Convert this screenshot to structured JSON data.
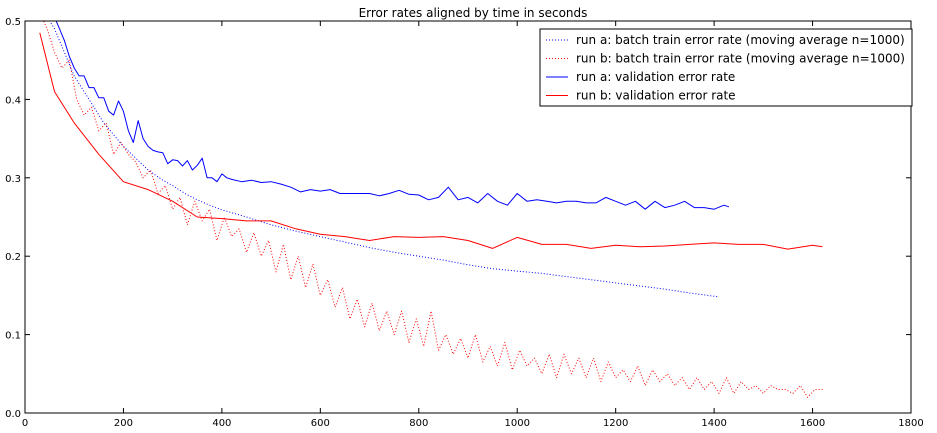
{
  "chart_data": {
    "type": "line",
    "title": "Error rates aligned by time in seconds",
    "xlabel": "",
    "ylabel": "",
    "xlim": [
      0,
      1800
    ],
    "ylim": [
      0,
      0.5
    ],
    "x_ticks": [
      "0",
      "200",
      "400",
      "600",
      "800",
      "1000",
      "1200",
      "1400",
      "1600",
      "1800"
    ],
    "y_ticks": [
      "0.0",
      "0.1",
      "0.2",
      "0.3",
      "0.4",
      "0.5"
    ],
    "grid": false,
    "legend_position": "top-right",
    "series": [
      {
        "name": "run a: batch train error rate (moving average n=1000)",
        "color": "#0000ff",
        "style": "dotted",
        "x": [
          30,
          60,
          80,
          100,
          120,
          140,
          160,
          180,
          200,
          225,
          250,
          280,
          300,
          325,
          350,
          375,
          400,
          450,
          500,
          550,
          600,
          650,
          700,
          750,
          800,
          850,
          900,
          950,
          1000,
          1050,
          1100,
          1150,
          1200,
          1250,
          1300,
          1350,
          1400,
          1410
        ],
        "y": [
          0.52,
          0.49,
          0.46,
          0.43,
          0.41,
          0.39,
          0.37,
          0.355,
          0.34,
          0.325,
          0.31,
          0.297,
          0.29,
          0.28,
          0.272,
          0.265,
          0.259,
          0.25,
          0.24,
          0.232,
          0.225,
          0.218,
          0.211,
          0.205,
          0.2,
          0.195,
          0.189,
          0.184,
          0.181,
          0.178,
          0.174,
          0.17,
          0.166,
          0.162,
          0.158,
          0.153,
          0.149,
          0.148
        ]
      },
      {
        "name": "run b: batch train error rate (moving average n=1000)",
        "color": "#ff0000",
        "style": "dotted",
        "x": [
          30,
          45,
          60,
          75,
          90,
          105,
          120,
          135,
          150,
          165,
          180,
          195,
          210,
          225,
          240,
          255,
          270,
          285,
          300,
          315,
          330,
          345,
          360,
          375,
          390,
          405,
          420,
          435,
          450,
          465,
          480,
          495,
          510,
          525,
          540,
          555,
          570,
          585,
          600,
          615,
          630,
          645,
          660,
          675,
          690,
          705,
          720,
          735,
          750,
          765,
          780,
          795,
          810,
          825,
          840,
          855,
          870,
          885,
          900,
          915,
          930,
          945,
          960,
          975,
          990,
          1005,
          1020,
          1035,
          1050,
          1065,
          1080,
          1095,
          1110,
          1125,
          1140,
          1155,
          1170,
          1185,
          1200,
          1215,
          1230,
          1245,
          1260,
          1275,
          1290,
          1305,
          1320,
          1335,
          1350,
          1365,
          1380,
          1395,
          1410,
          1425,
          1440,
          1455,
          1470,
          1485,
          1500,
          1515,
          1530,
          1545,
          1560,
          1575,
          1590,
          1605,
          1620
        ],
        "y": [
          0.51,
          0.49,
          0.46,
          0.44,
          0.45,
          0.4,
          0.38,
          0.39,
          0.36,
          0.37,
          0.33,
          0.345,
          0.33,
          0.32,
          0.3,
          0.31,
          0.28,
          0.29,
          0.26,
          0.275,
          0.24,
          0.27,
          0.245,
          0.26,
          0.22,
          0.25,
          0.225,
          0.235,
          0.205,
          0.23,
          0.2,
          0.22,
          0.18,
          0.215,
          0.17,
          0.2,
          0.16,
          0.19,
          0.15,
          0.17,
          0.135,
          0.16,
          0.12,
          0.145,
          0.11,
          0.14,
          0.105,
          0.13,
          0.1,
          0.13,
          0.09,
          0.12,
          0.085,
          0.13,
          0.08,
          0.1,
          0.075,
          0.095,
          0.07,
          0.1,
          0.065,
          0.085,
          0.06,
          0.09,
          0.055,
          0.08,
          0.06,
          0.07,
          0.05,
          0.075,
          0.045,
          0.075,
          0.05,
          0.07,
          0.045,
          0.07,
          0.04,
          0.065,
          0.045,
          0.055,
          0.04,
          0.06,
          0.035,
          0.055,
          0.04,
          0.05,
          0.035,
          0.045,
          0.03,
          0.045,
          0.03,
          0.04,
          0.025,
          0.045,
          0.025,
          0.04,
          0.03,
          0.035,
          0.025,
          0.035,
          0.03,
          0.03,
          0.025,
          0.035,
          0.02,
          0.03,
          0.03
        ]
      },
      {
        "name": "run a: validation error rate",
        "color": "#0000ff",
        "style": "solid",
        "x": [
          60,
          70,
          80,
          90,
          100,
          110,
          120,
          130,
          140,
          150,
          160,
          170,
          180,
          190,
          200,
          210,
          220,
          230,
          240,
          250,
          260,
          270,
          280,
          290,
          300,
          310,
          320,
          330,
          340,
          350,
          360,
          370,
          380,
          390,
          400,
          410,
          420,
          440,
          460,
          480,
          500,
          520,
          540,
          560,
          580,
          600,
          620,
          640,
          660,
          680,
          700,
          720,
          740,
          760,
          780,
          800,
          820,
          840,
          860,
          880,
          900,
          920,
          940,
          960,
          980,
          1000,
          1020,
          1040,
          1060,
          1080,
          1100,
          1120,
          1140,
          1160,
          1180,
          1200,
          1220,
          1240,
          1260,
          1280,
          1300,
          1320,
          1340,
          1360,
          1380,
          1400,
          1420,
          1430
        ],
        "y": [
          0.505,
          0.49,
          0.475,
          0.455,
          0.44,
          0.43,
          0.43,
          0.415,
          0.415,
          0.402,
          0.402,
          0.385,
          0.38,
          0.398,
          0.385,
          0.36,
          0.345,
          0.373,
          0.35,
          0.34,
          0.335,
          0.333,
          0.332,
          0.318,
          0.323,
          0.322,
          0.315,
          0.322,
          0.31,
          0.316,
          0.325,
          0.3,
          0.3,
          0.295,
          0.305,
          0.3,
          0.298,
          0.295,
          0.297,
          0.294,
          0.295,
          0.292,
          0.288,
          0.282,
          0.285,
          0.283,
          0.285,
          0.28,
          0.28,
          0.28,
          0.28,
          0.277,
          0.28,
          0.284,
          0.279,
          0.278,
          0.272,
          0.275,
          0.288,
          0.272,
          0.275,
          0.268,
          0.28,
          0.27,
          0.265,
          0.28,
          0.27,
          0.272,
          0.27,
          0.268,
          0.27,
          0.27,
          0.268,
          0.268,
          0.275,
          0.27,
          0.265,
          0.27,
          0.26,
          0.27,
          0.262,
          0.265,
          0.27,
          0.262,
          0.262,
          0.26,
          0.265,
          0.263
        ]
      },
      {
        "name": "run b: validation error rate",
        "color": "#ff0000",
        "style": "solid",
        "x": [
          30,
          60,
          100,
          150,
          200,
          250,
          300,
          350,
          400,
          450,
          500,
          550,
          600,
          650,
          700,
          750,
          800,
          850,
          900,
          950,
          1000,
          1050,
          1100,
          1150,
          1200,
          1250,
          1300,
          1350,
          1400,
          1450,
          1500,
          1550,
          1600,
          1620
        ],
        "y": [
          0.485,
          0.41,
          0.37,
          0.33,
          0.295,
          0.285,
          0.27,
          0.25,
          0.248,
          0.245,
          0.245,
          0.235,
          0.228,
          0.225,
          0.22,
          0.225,
          0.224,
          0.225,
          0.22,
          0.21,
          0.224,
          0.215,
          0.215,
          0.21,
          0.214,
          0.212,
          0.213,
          0.215,
          0.217,
          0.215,
          0.215,
          0.209,
          0.214,
          0.212
        ]
      }
    ]
  }
}
